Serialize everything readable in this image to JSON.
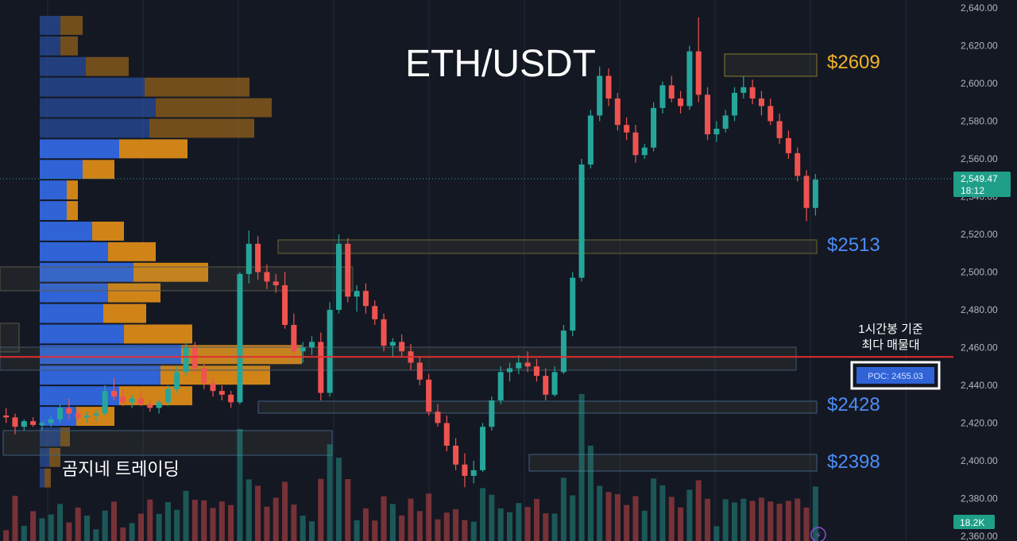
{
  "chart_data": {
    "type": "candlestick",
    "title": "ETH/USDT",
    "watermark": "곰지네 트레이딩",
    "ylim": [
      2360,
      2640
    ],
    "yticks": [
      2360,
      2380,
      2400,
      2420,
      2440,
      2460,
      2480,
      2500,
      2520,
      2540,
      2560,
      2580,
      2600,
      2620,
      2640
    ],
    "ytick_labels": [
      "2,360.00",
      "2,380.00",
      "2,400.00",
      "2,420.00",
      "2,440.00",
      "2,460.00",
      "2,480.00",
      "2,500.00",
      "2,520.00",
      "2,540.00",
      "2,560.00",
      "2,580.00",
      "2,600.00",
      "2,620.00",
      "2,640.00"
    ],
    "current_price": {
      "value": 2549.47,
      "label": "2,549.47",
      "countdown": "18:12"
    },
    "volume_label": "18.2K",
    "poc": {
      "value": 2455.03,
      "label": "POC: 2455.03",
      "note_line1": "1시간봉 기준",
      "note_line2": "최다 매물대"
    },
    "levels": [
      {
        "value": 2609,
        "label": "$2609",
        "color": "#f0b429"
      },
      {
        "value": 2513,
        "label": "$2513",
        "color": "#4c8df6"
      },
      {
        "value": 2428,
        "label": "$2428",
        "color": "#4c8df6"
      },
      {
        "value": 2398,
        "label": "$2398",
        "color": "#4c8df6"
      }
    ],
    "colors": {
      "up": "#26a69a",
      "down": "#ef5350",
      "profile_blue": "#2f63d6",
      "profile_orange": "#d08418",
      "poc_line": "#e03030",
      "label_bg": "#1f9f88"
    },
    "candles": [
      [
        2424,
        2428,
        2420,
        2423
      ],
      [
        2423,
        2425,
        2414,
        2418
      ],
      [
        2418,
        2422,
        2416,
        2421
      ],
      [
        2421,
        2423,
        2418,
        2419
      ],
      [
        2419,
        2421,
        2416,
        2420
      ],
      [
        2420,
        2424,
        2418,
        2422
      ],
      [
        2422,
        2430,
        2420,
        2428
      ],
      [
        2428,
        2433,
        2422,
        2425
      ],
      [
        2425,
        2428,
        2421,
        2423
      ],
      [
        2423,
        2426,
        2420,
        2424
      ],
      [
        2424,
        2427,
        2421,
        2425
      ],
      [
        2425,
        2440,
        2424,
        2437
      ],
      [
        2437,
        2444,
        2432,
        2434
      ],
      [
        2434,
        2438,
        2429,
        2431
      ],
      [
        2431,
        2435,
        2428,
        2433
      ],
      [
        2433,
        2437,
        2429,
        2430
      ],
      [
        2430,
        2433,
        2426,
        2428
      ],
      [
        2428,
        2432,
        2425,
        2431
      ],
      [
        2431,
        2440,
        2429,
        2438
      ],
      [
        2438,
        2450,
        2436,
        2447
      ],
      [
        2447,
        2463,
        2445,
        2460
      ],
      [
        2460,
        2463,
        2446,
        2449
      ],
      [
        2449,
        2452,
        2438,
        2441
      ],
      [
        2441,
        2444,
        2434,
        2437
      ],
      [
        2437,
        2440,
        2432,
        2435
      ],
      [
        2435,
        2437,
        2428,
        2431
      ],
      [
        2431,
        2500,
        2430,
        2499
      ],
      [
        2499,
        2522,
        2494,
        2515
      ],
      [
        2515,
        2519,
        2496,
        2500
      ],
      [
        2500,
        2504,
        2491,
        2495
      ],
      [
        2495,
        2499,
        2489,
        2493
      ],
      [
        2493,
        2500,
        2470,
        2472
      ],
      [
        2472,
        2478,
        2455,
        2458
      ],
      [
        2458,
        2463,
        2452,
        2460
      ],
      [
        2460,
        2466,
        2456,
        2463
      ],
      [
        2463,
        2468,
        2432,
        2436
      ],
      [
        2436,
        2484,
        2434,
        2480
      ],
      [
        2480,
        2520,
        2478,
        2515
      ],
      [
        2515,
        2518,
        2484,
        2487
      ],
      [
        2487,
        2493,
        2479,
        2490
      ],
      [
        2490,
        2494,
        2478,
        2482
      ],
      [
        2482,
        2485,
        2472,
        2475
      ],
      [
        2475,
        2478,
        2458,
        2461
      ],
      [
        2461,
        2465,
        2455,
        2463
      ],
      [
        2463,
        2467,
        2455,
        2458
      ],
      [
        2458,
        2462,
        2448,
        2452
      ],
      [
        2452,
        2455,
        2440,
        2443
      ],
      [
        2443,
        2446,
        2424,
        2426
      ],
      [
        2426,
        2430,
        2418,
        2420
      ],
      [
        2420,
        2424,
        2405,
        2408
      ],
      [
        2408,
        2412,
        2395,
        2398
      ],
      [
        2398,
        2404,
        2386,
        2392
      ],
      [
        2392,
        2400,
        2388,
        2395
      ],
      [
        2395,
        2420,
        2394,
        2418
      ],
      [
        2418,
        2434,
        2416,
        2432
      ],
      [
        2432,
        2450,
        2430,
        2447
      ],
      [
        2447,
        2452,
        2442,
        2449
      ],
      [
        2449,
        2456,
        2446,
        2452
      ],
      [
        2452,
        2458,
        2447,
        2450
      ],
      [
        2450,
        2454,
        2442,
        2445
      ],
      [
        2445,
        2449,
        2432,
        2435
      ],
      [
        2435,
        2450,
        2434,
        2447
      ],
      [
        2447,
        2472,
        2446,
        2469
      ],
      [
        2469,
        2500,
        2466,
        2497
      ],
      [
        2497,
        2560,
        2495,
        2557
      ],
      [
        2557,
        2586,
        2555,
        2583
      ],
      [
        2583,
        2609,
        2580,
        2604
      ],
      [
        2604,
        2608,
        2588,
        2592
      ],
      [
        2592,
        2595,
        2575,
        2578
      ],
      [
        2578,
        2582,
        2570,
        2574
      ],
      [
        2574,
        2578,
        2558,
        2562
      ],
      [
        2562,
        2568,
        2560,
        2566
      ],
      [
        2566,
        2590,
        2564,
        2587
      ],
      [
        2587,
        2601,
        2584,
        2599
      ],
      [
        2599,
        2604,
        2590,
        2592
      ],
      [
        2592,
        2596,
        2584,
        2588
      ],
      [
        2588,
        2620,
        2586,
        2617
      ],
      [
        2617,
        2635,
        2590,
        2594
      ],
      [
        2594,
        2598,
        2570,
        2573
      ],
      [
        2573,
        2580,
        2569,
        2576
      ],
      [
        2576,
        2586,
        2574,
        2583
      ],
      [
        2583,
        2598,
        2580,
        2595
      ],
      [
        2595,
        2604,
        2592,
        2598
      ],
      [
        2598,
        2602,
        2589,
        2592
      ],
      [
        2592,
        2596,
        2583,
        2588
      ],
      [
        2588,
        2592,
        2578,
        2580
      ],
      [
        2580,
        2584,
        2568,
        2571
      ],
      [
        2571,
        2575,
        2560,
        2563
      ],
      [
        2563,
        2566,
        2548,
        2551
      ],
      [
        2551,
        2554,
        2527,
        2534
      ],
      [
        2534,
        2552,
        2530,
        2549
      ]
    ],
    "volume_profile": [
      {
        "blue": 26,
        "orange": 28
      },
      {
        "blue": 26,
        "orange": 22
      },
      {
        "blue": 58,
        "orange": 54
      },
      {
        "blue": 132,
        "orange": 132
      },
      {
        "blue": 146,
        "orange": 146
      },
      {
        "blue": 138,
        "orange": 132
      },
      {
        "blue": 100,
        "orange": 86
      },
      {
        "blue": 54,
        "orange": 40
      },
      {
        "blue": 34,
        "orange": 14
      },
      {
        "blue": 34,
        "orange": 14
      },
      {
        "blue": 66,
        "orange": 40
      },
      {
        "blue": 86,
        "orange": 60
      },
      {
        "blue": 118,
        "orange": 94
      },
      {
        "blue": 86,
        "orange": 66
      },
      {
        "blue": 80,
        "orange": 54
      },
      {
        "blue": 106,
        "orange": 86
      },
      {
        "blue": 178,
        "orange": 152
      },
      {
        "blue": 152,
        "orange": 138
      },
      {
        "blue": 100,
        "orange": 92
      },
      {
        "blue": 46,
        "orange": 48
      },
      {
        "blue": 26,
        "orange": 12
      },
      {
        "blue": 12,
        "orange": 14
      },
      {
        "blue": 6,
        "orange": 8
      }
    ]
  }
}
